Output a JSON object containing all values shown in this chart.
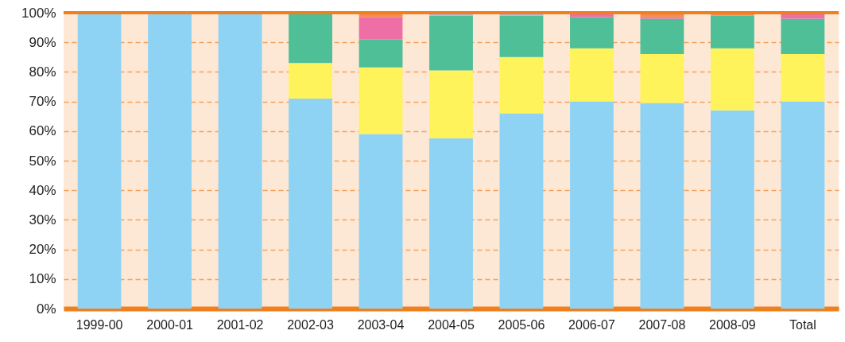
{
  "chart_data": {
    "type": "bar",
    "stacked": true,
    "categories": [
      "1999-00",
      "2000-01",
      "2001-02",
      "2002-03",
      "2003-04",
      "2004-05",
      "2005-06",
      "2006-07",
      "2007-08",
      "2008-09",
      "Total"
    ],
    "series": [
      {
        "color": "#8fd3f4",
        "values": [
          100,
          100,
          100,
          71,
          59,
          57.5,
          66,
          70,
          69.5,
          67,
          70
        ]
      },
      {
        "color": "#fff35c",
        "values": [
          null,
          null,
          null,
          12,
          22.5,
          23,
          19,
          18,
          16.5,
          21,
          16
        ]
      },
      {
        "color": "#4fbf98",
        "values": [
          null,
          null,
          null,
          17,
          9.5,
          18.5,
          14,
          10.5,
          12,
          11,
          12
        ]
      },
      {
        "color": "#ee6ea6",
        "values": [
          null,
          null,
          null,
          null,
          7.5,
          null,
          null,
          1.5,
          0.5,
          null,
          2
        ]
      },
      {
        "color": "#f58c50",
        "values": [
          null,
          null,
          null,
          null,
          1.5,
          null,
          null,
          null,
          1.5,
          1,
          null
        ]
      },
      {
        "color": "#b4b0d8",
        "values": [
          null,
          null,
          null,
          null,
          null,
          1,
          1,
          null,
          null,
          null,
          null
        ]
      }
    ],
    "ylim": [
      0,
      100
    ],
    "yticks": [
      {
        "value": 0,
        "label": "0%"
      },
      {
        "value": 10,
        "label": "10%"
      },
      {
        "value": 20,
        "label": "20%"
      },
      {
        "value": 30,
        "label": "30%"
      },
      {
        "value": 40,
        "label": "40%"
      },
      {
        "value": 50,
        "label": "50%"
      },
      {
        "value": 60,
        "label": "60%"
      },
      {
        "value": 70,
        "label": "70%"
      },
      {
        "value": 80,
        "label": "80%"
      },
      {
        "value": 90,
        "label": "90%"
      },
      {
        "value": 100,
        "label": "100%"
      }
    ],
    "bands": [
      {
        "axis": "y",
        "from": 0,
        "to": 100,
        "color": "#fde8d6"
      }
    ],
    "grid": "y",
    "line_style": "dashed"
  }
}
